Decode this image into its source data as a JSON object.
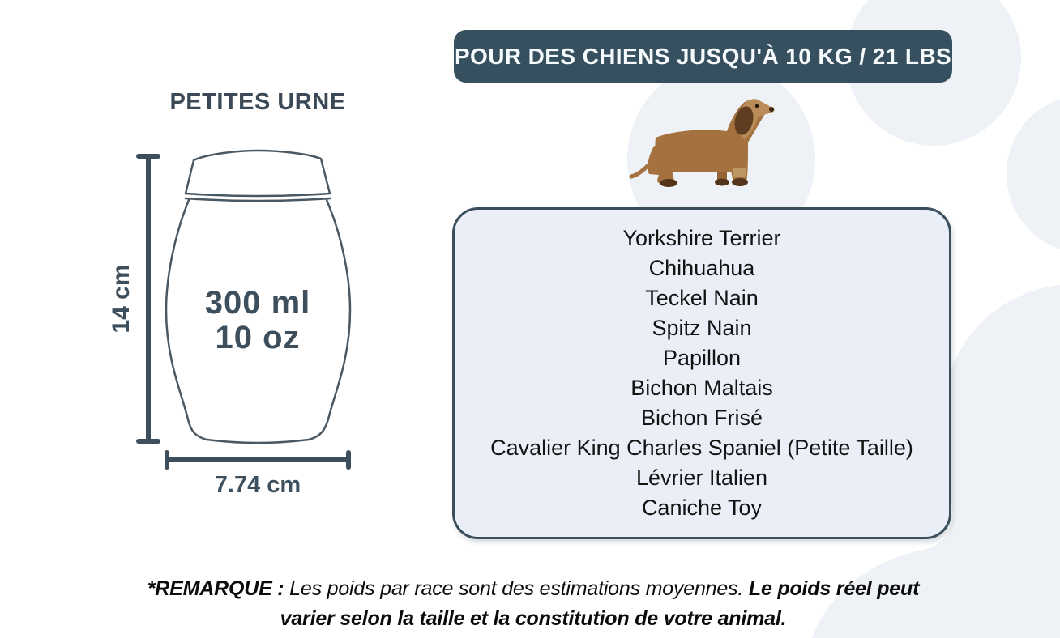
{
  "badge": {
    "label": "POUR DES CHIENS JUSQU'À 10 KG / 21 LBS"
  },
  "urn": {
    "title": "PETITES URNE",
    "volume_ml": "300 ml",
    "volume_oz": "10 oz",
    "height": "14 cm",
    "diameter": "7.74 cm"
  },
  "icons": {
    "dog": "dachshund-dog-illustration",
    "background": "paw-print-watermark"
  },
  "breeds": {
    "items": [
      "Yorkshire Terrier",
      "Chihuahua",
      "Teckel Nain",
      "Spitz Nain",
      "Papillon",
      "Bichon Maltais",
      "Bichon Frisé",
      "Cavalier King Charles Spaniel (Petite Taille)",
      "Lévrier Italien",
      "Caniche Toy"
    ]
  },
  "note": {
    "prefix": "*REMARQUE :",
    "body": " Les poids par race sont des estimations moyennes. ",
    "emphasis": "Le poids réel peut varier selon la taille et la constitution de votre animal."
  },
  "colors": {
    "accent_dark": "#36505f",
    "slate_text": "#3d4f5c",
    "box_fill": "#e9eef7",
    "box_border": "#3a4e5c",
    "watermark": "#eef1f5",
    "dog_body": "#a4713f",
    "dog_dark": "#5e3d20"
  }
}
